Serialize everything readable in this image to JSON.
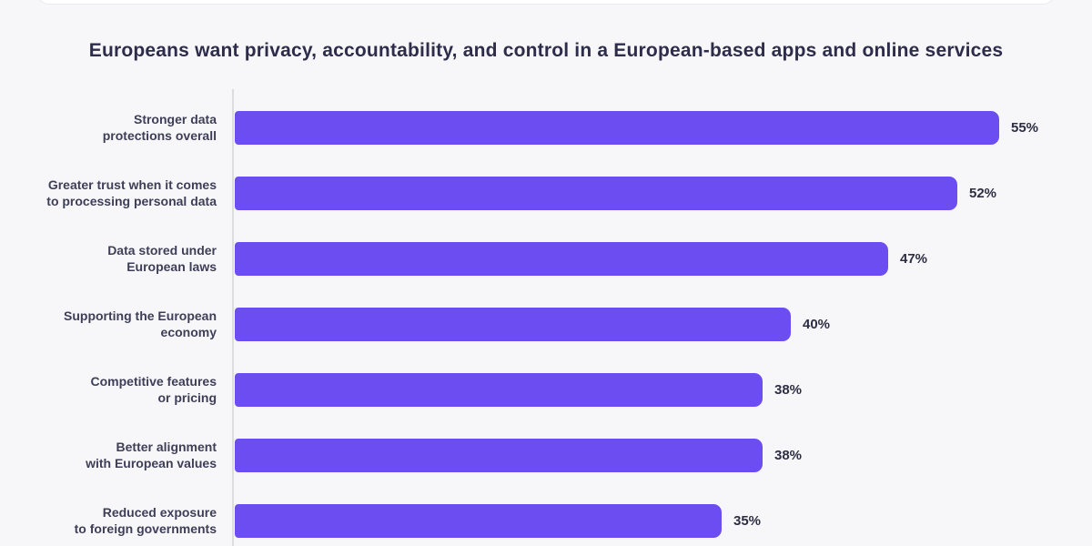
{
  "title": "Europeans want privacy, accountability, and control in a European-based apps and online services",
  "colors": {
    "bar": "#6B4DF2",
    "title_text": "#2D2D4B",
    "category_text": "#3E3E58",
    "value_text": "#2D2D44",
    "axis_line": "#DCDCE3",
    "background": "#F7F7F9",
    "header_card": "#FFFFFF"
  },
  "chart_data": {
    "type": "bar",
    "orientation": "horizontal",
    "title": "Europeans want privacy, accountability, and control in a European-based apps and online services",
    "categories": [
      "Stronger data\nprotections overall",
      "Greater trust when it comes\nto processing personal data",
      "Data stored under\nEuropean laws",
      "Supporting the European\neconomy",
      "Competitive features\nor pricing",
      "Better alignment\nwith European values",
      "Reduced exposure\nto foreign governments"
    ],
    "values": [
      55,
      52,
      47,
      40,
      38,
      38,
      35
    ],
    "value_labels": [
      "55%",
      "52%",
      "47%",
      "40%",
      "38%",
      "38%",
      "35%"
    ],
    "value_suffix": "%",
    "xlabel": "",
    "ylabel": "",
    "xlim": [
      0,
      55
    ],
    "grid": false,
    "legend": false,
    "bar_color": "#6B4DF2"
  }
}
